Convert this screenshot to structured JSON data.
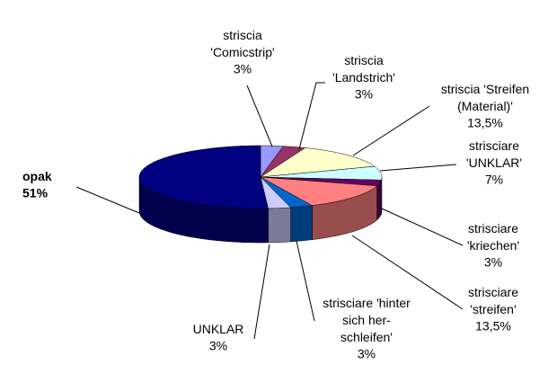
{
  "chart_data": {
    "type": "pie3d",
    "categories": [
      "striscia\n'Comicstrip'",
      "striscia\n'Landstrich'",
      "striscia 'Streifen\n(Material)'",
      "strisciare\n'UNKLAR'",
      "strisciare\n'kriechen'",
      "strisciare\n'streifen'",
      "strisciare 'hinter\nsich her-\nschleifen'",
      "UNKLAR",
      "opak"
    ],
    "values": [
      3,
      3,
      13.5,
      7,
      3,
      13.5,
      3,
      3,
      51
    ],
    "value_labels": [
      "3%",
      "3%",
      "13,5%",
      "7%",
      "3%",
      "13,5%",
      "3%",
      "3%",
      "51%"
    ],
    "colors": [
      "#9999FF",
      "#993366",
      "#FFFFCC",
      "#CCFFFF",
      "#660066",
      "#FF8080",
      "#0066CC",
      "#CCCCFF",
      "#000080"
    ]
  }
}
